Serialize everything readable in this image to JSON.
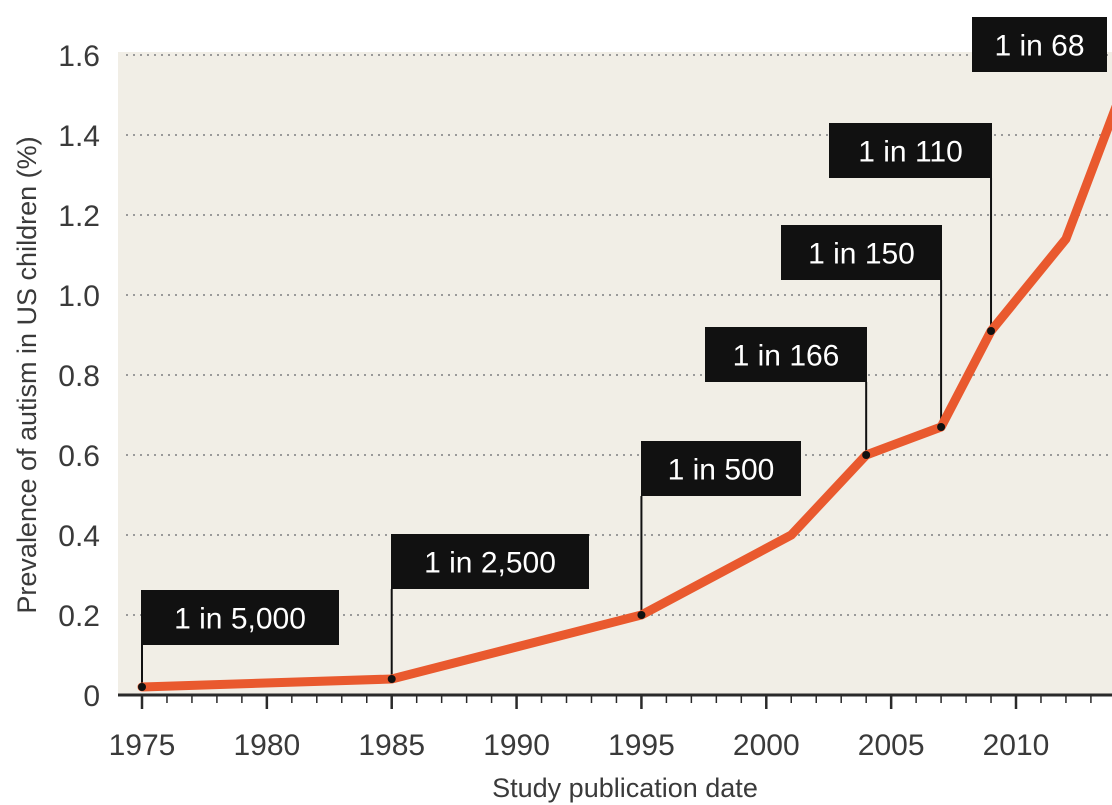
{
  "chart_data": {
    "type": "line",
    "title": "",
    "xlabel": "Study publication date",
    "ylabel": "Prevalence of autism in US children (%)",
    "xlim": [
      1975,
      2014
    ],
    "ylim": [
      0,
      1.6
    ],
    "xticks": [
      1975,
      1980,
      1985,
      1990,
      1995,
      2000,
      2005,
      2010
    ],
    "yticks": [
      {
        "value": 0,
        "label": "0"
      },
      {
        "value": 0.2,
        "label": "0.2"
      },
      {
        "value": 0.4,
        "label": "0.4"
      },
      {
        "value": 0.6,
        "label": "0.6"
      },
      {
        "value": 0.8,
        "label": "0.8"
      },
      {
        "value": 1.0,
        "label": "1.0"
      },
      {
        "value": 1.2,
        "label": "1.2"
      },
      {
        "value": 1.4,
        "label": "1.4"
      },
      {
        "value": 1.6,
        "label": "1.6"
      }
    ],
    "grid": "horizontal dotted",
    "series": [
      {
        "color": "#e9592e",
        "points": [
          {
            "x": 1975,
            "y": 0.02
          },
          {
            "x": 1985,
            "y": 0.04
          },
          {
            "x": 1995,
            "y": 0.2
          },
          {
            "x": 2001,
            "y": 0.4
          },
          {
            "x": 2004,
            "y": 0.6
          },
          {
            "x": 2007,
            "y": 0.67
          },
          {
            "x": 2009,
            "y": 0.91
          },
          {
            "x": 2012,
            "y": 1.14
          },
          {
            "x": 2014,
            "y": 1.47
          }
        ]
      }
    ],
    "annotations": [
      {
        "x": 1975,
        "y": 0.02,
        "label": "1 in 5,000"
      },
      {
        "x": 1985,
        "y": 0.04,
        "label": "1 in 2,500"
      },
      {
        "x": 1995,
        "y": 0.2,
        "label": "1 in 500"
      },
      {
        "x": 2004,
        "y": 0.6,
        "label": "1 in 166"
      },
      {
        "x": 2007,
        "y": 0.67,
        "label": "1 in 150"
      },
      {
        "x": 2009,
        "y": 0.91,
        "label": "1 in 110"
      },
      {
        "x": 2014,
        "y": 1.47,
        "label": "1 in 68"
      }
    ],
    "colors": {
      "plot_background": "#f1eee6",
      "line": "#e9592e",
      "callout_box": "#111111",
      "callout_text": "#ffffff",
      "grid": "#9a9a9a",
      "axis": "#2a2a2a",
      "text": "#3a3a3a"
    }
  }
}
